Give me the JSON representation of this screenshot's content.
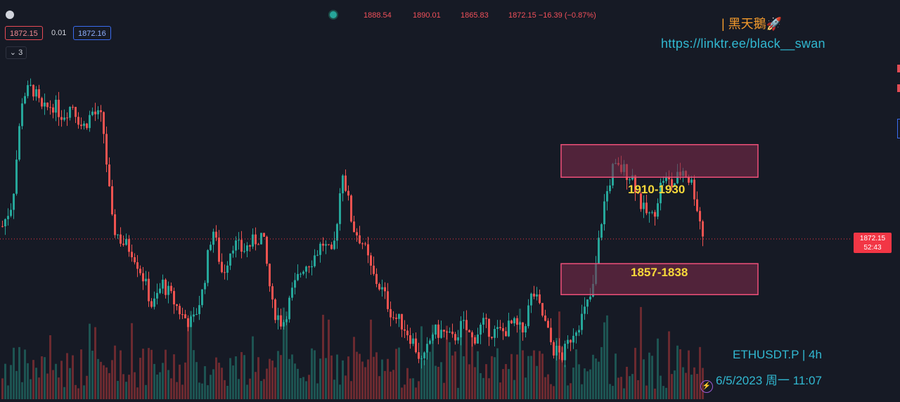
{
  "header": {
    "open": "1888.54",
    "high": "1890.01",
    "low": "1865.83",
    "close_change": "1872.15 −16.39 (−0.87%)"
  },
  "quote": {
    "bid": "1872.15",
    "spread": "0.01",
    "ask": "1872.16"
  },
  "indicators_collapse": "⌄ 3",
  "brand": "| 黑天鵝🚀",
  "link": "https://linktr.ee/black__swan",
  "price_tag": {
    "price": "1872.15",
    "countdown": "52:43"
  },
  "watermark": {
    "symbol": "ETHUSDT.P | 4h",
    "datetime": "6/5/2023 周一 11:07"
  },
  "colors": {
    "up": "#26a69a",
    "down": "#ef5350",
    "zone_fill": "#7a2a4a",
    "zone_border": "#f0507a",
    "label": "#f6d83a",
    "accent": "#31b8d1"
  },
  "chart_data": {
    "type": "candlestick",
    "title": "ETHUSDT.P | 4h",
    "last_price": 1872.15,
    "ylim": [
      1775,
      2000
    ],
    "zones": [
      {
        "label": "1910-1930",
        "from": 1910,
        "to": 1930
      },
      {
        "label": "1857-1838",
        "from": 1838,
        "to": 1857
      }
    ],
    "close_path": [
      1880,
      1895,
      1960,
      1965,
      1950,
      1955,
      1948,
      1955,
      1940,
      1950,
      1945,
      1880,
      1870,
      1865,
      1850,
      1830,
      1845,
      1835,
      1825,
      1820,
      1840,
      1880,
      1850,
      1870,
      1865,
      1870,
      1875,
      1830,
      1820,
      1840,
      1855,
      1860,
      1870,
      1860,
      1915,
      1880,
      1870,
      1850,
      1840,
      1825,
      1820,
      1810,
      1795,
      1815,
      1815,
      1810,
      1820,
      1810,
      1820,
      1815,
      1815,
      1820,
      1815,
      1840,
      1825,
      1805,
      1800,
      1815,
      1825,
      1840,
      1890,
      1915,
      1915,
      1910,
      1890,
      1885,
      1910,
      1905,
      1915,
      1905,
      1875
    ]
  }
}
